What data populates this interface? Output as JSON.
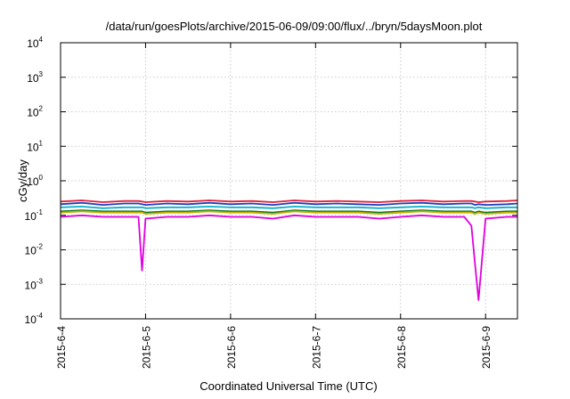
{
  "chart_data": {
    "type": "line",
    "title": "/data/run/goesPlots/archive/2015-06-09/09:00/flux/../bryn/5daysMoon.plot",
    "xlabel": "Coordinated Universal Time (UTC)",
    "ylabel": "cGy/day",
    "y_scale": "log",
    "ylim": [
      0.0001,
      10000
    ],
    "xlim": [
      "2015-06-04 00:00",
      "2015-06-09 09:00"
    ],
    "grid": true,
    "legend": "none",
    "x_ticks": [
      "2015-6-4",
      "2015-6-5",
      "2015-6-6",
      "2015-6-7",
      "2015-6-8",
      "2015-6-9"
    ],
    "y_ticks": [
      {
        "base": "10",
        "exp": "-4",
        "value": 0.0001
      },
      {
        "base": "10",
        "exp": "-3",
        "value": 0.001
      },
      {
        "base": "10",
        "exp": "-2",
        "value": 0.01
      },
      {
        "base": "10",
        "exp": "-1",
        "value": 0.1
      },
      {
        "base": "10",
        "exp": "0",
        "value": 1
      },
      {
        "base": "10",
        "exp": "1",
        "value": 10
      },
      {
        "base": "10",
        "exp": "2",
        "value": 100
      },
      {
        "base": "10",
        "exp": "3",
        "value": 1000
      },
      {
        "base": "10",
        "exp": "4",
        "value": 10000
      }
    ],
    "x": [
      "2015-06-04 00:00",
      "2015-06-04 06:00",
      "2015-06-04 12:00",
      "2015-06-04 18:00",
      "2015-06-04 22:00",
      "2015-06-04 23:00",
      "2015-06-05 00:00",
      "2015-06-05 06:00",
      "2015-06-05 12:00",
      "2015-06-05 18:00",
      "2015-06-06 00:00",
      "2015-06-06 06:00",
      "2015-06-06 12:00",
      "2015-06-06 18:00",
      "2015-06-07 00:00",
      "2015-06-07 06:00",
      "2015-06-07 12:00",
      "2015-06-07 18:00",
      "2015-06-08 00:00",
      "2015-06-08 06:00",
      "2015-06-08 12:00",
      "2015-06-08 18:00",
      "2015-06-08 20:00",
      "2015-06-08 21:00",
      "2015-06-08 22:00",
      "2015-06-09 00:00",
      "2015-06-09 06:00",
      "2015-06-09 09:00"
    ],
    "series": [
      {
        "color": "#e0203a",
        "values": [
          0.25,
          0.27,
          0.24,
          0.26,
          0.26,
          0.25,
          0.24,
          0.26,
          0.25,
          0.27,
          0.25,
          0.26,
          0.24,
          0.27,
          0.25,
          0.26,
          0.25,
          0.24,
          0.26,
          0.27,
          0.25,
          0.26,
          0.26,
          0.25,
          0.24,
          0.25,
          0.26,
          0.27
        ]
      },
      {
        "color": "#1e3fbf",
        "values": [
          0.21,
          0.23,
          0.2,
          0.22,
          0.22,
          0.21,
          0.2,
          0.22,
          0.21,
          0.23,
          0.21,
          0.22,
          0.2,
          0.23,
          0.21,
          0.22,
          0.21,
          0.2,
          0.22,
          0.23,
          0.21,
          0.22,
          0.22,
          0.2,
          0.21,
          0.2,
          0.21,
          0.22
        ]
      },
      {
        "color": "#10b0c8",
        "values": [
          0.17,
          0.18,
          0.16,
          0.17,
          0.17,
          0.17,
          0.16,
          0.17,
          0.17,
          0.18,
          0.17,
          0.17,
          0.16,
          0.18,
          0.17,
          0.17,
          0.17,
          0.16,
          0.17,
          0.18,
          0.17,
          0.17,
          0.17,
          0.16,
          0.17,
          0.16,
          0.17,
          0.17
        ]
      },
      {
        "color": "#0a7a20",
        "values": [
          0.13,
          0.14,
          0.13,
          0.13,
          0.13,
          0.13,
          0.12,
          0.13,
          0.13,
          0.14,
          0.13,
          0.13,
          0.12,
          0.14,
          0.13,
          0.13,
          0.13,
          0.12,
          0.13,
          0.14,
          0.13,
          0.13,
          0.13,
          0.12,
          0.13,
          0.12,
          0.13,
          0.13
        ]
      },
      {
        "color": "#c8b000",
        "values": [
          0.12,
          0.13,
          0.12,
          0.12,
          0.12,
          0.12,
          0.11,
          0.12,
          0.12,
          0.13,
          0.12,
          0.12,
          0.11,
          0.13,
          0.12,
          0.12,
          0.12,
          0.11,
          0.12,
          0.13,
          0.12,
          0.12,
          0.12,
          0.11,
          0.12,
          0.11,
          0.12,
          0.12
        ]
      },
      {
        "color": "#e000e0",
        "values": [
          0.09,
          0.1,
          0.09,
          0.09,
          0.09,
          0.0025,
          0.08,
          0.09,
          0.09,
          0.1,
          0.09,
          0.09,
          0.08,
          0.1,
          0.09,
          0.09,
          0.09,
          0.08,
          0.09,
          0.1,
          0.09,
          0.09,
          0.05,
          0.004,
          0.00035,
          0.08,
          0.09,
          0.09
        ]
      }
    ]
  }
}
